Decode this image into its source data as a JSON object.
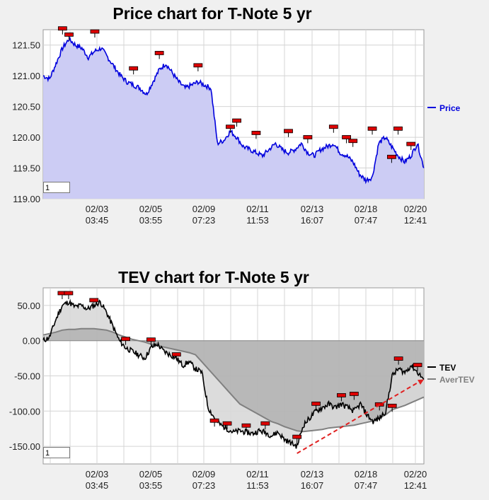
{
  "chart_data": [
    {
      "type": "area",
      "title": "Price chart for T-Note 5 yr",
      "ylim": [
        119.0,
        121.75
      ],
      "y_ticks": [
        "121.50",
        "121.00",
        "120.50",
        "120.00",
        "119.50",
        "119.00"
      ],
      "y_tick_values": [
        121.5,
        121.0,
        120.5,
        120.0,
        119.5,
        119.0
      ],
      "x_ticks": [
        {
          "date": "02/03",
          "time": "03:45"
        },
        {
          "date": "02/05",
          "time": "03:55"
        },
        {
          "date": "02/09",
          "time": "07:23"
        },
        {
          "date": "02/11",
          "time": "11:53"
        },
        {
          "date": "02/13",
          "time": "16:07"
        },
        {
          "date": "02/18",
          "time": "07:47"
        },
        {
          "date": "02/20",
          "time": "12:41"
        }
      ],
      "page_value": "1",
      "grid": true,
      "legend_position": "right",
      "colors": {
        "price_line": "#0000dd",
        "price_fill": "#ccccf4",
        "marker": "#dd0000"
      },
      "series": [
        {
          "name": "Price",
          "values": [
            121.0,
            120.95,
            121.2,
            121.45,
            121.6,
            121.5,
            121.45,
            121.3,
            121.4,
            121.45,
            121.3,
            121.15,
            121.0,
            120.9,
            120.85,
            120.8,
            120.7,
            120.9,
            121.1,
            121.2,
            121.05,
            120.9,
            120.8,
            120.85,
            120.9,
            120.85,
            120.8,
            119.9,
            119.95,
            120.1,
            120.0,
            119.85,
            119.8,
            119.75,
            119.7,
            119.8,
            119.9,
            119.8,
            119.75,
            119.8,
            119.9,
            119.75,
            119.7,
            119.8,
            119.85,
            119.9,
            119.75,
            119.7,
            119.6,
            119.4,
            119.3,
            119.35,
            119.9,
            120.0,
            119.85,
            119.7,
            119.6,
            119.7,
            119.9,
            119.5
          ]
        }
      ],
      "markers": [
        {
          "i": 3,
          "y": 121.65
        },
        {
          "i": 4,
          "y": 121.55
        },
        {
          "i": 8,
          "y": 121.6
        },
        {
          "i": 14,
          "y": 121.0
        },
        {
          "i": 18,
          "y": 121.25
        },
        {
          "i": 24,
          "y": 121.05
        },
        {
          "i": 29,
          "y": 120.05
        },
        {
          "i": 30,
          "y": 120.15
        },
        {
          "i": 33,
          "y": 119.95
        },
        {
          "i": 38,
          "y": 119.98
        },
        {
          "i": 41,
          "y": 119.88
        },
        {
          "i": 45,
          "y": 120.05
        },
        {
          "i": 47,
          "y": 119.88
        },
        {
          "i": 48,
          "y": 119.82
        },
        {
          "i": 51,
          "y": 120.02
        },
        {
          "i": 54,
          "y": 119.56
        },
        {
          "i": 55,
          "y": 120.02
        },
        {
          "i": 57,
          "y": 119.77
        }
      ]
    },
    {
      "type": "line",
      "title": "TEV chart for T-Note 5 yr",
      "ylim": [
        -175,
        75
      ],
      "y_ticks": [
        "50.00",
        "0.00",
        "-50.00",
        "-100.00",
        "-150.00"
      ],
      "y_tick_values": [
        50,
        0,
        -50,
        -100,
        -150
      ],
      "x_ticks": [
        {
          "date": "02/03",
          "time": "03:45"
        },
        {
          "date": "02/05",
          "time": "03:55"
        },
        {
          "date": "02/09",
          "time": "07:23"
        },
        {
          "date": "02/11",
          "time": "11:53"
        },
        {
          "date": "02/13",
          "time": "16:07"
        },
        {
          "date": "02/18",
          "time": "07:47"
        },
        {
          "date": "02/20",
          "time": "12:41"
        }
      ],
      "page_value": "1",
      "grid": true,
      "legend_position": "right",
      "colors": {
        "tev": "#000000",
        "avertev": "#808080",
        "fill_dark": "#b4b4b4",
        "fill_light": "#d8d8d8",
        "trend": "#e02020",
        "marker": "#dd0000"
      },
      "series": [
        {
          "name": "TEV",
          "values": [
            0,
            5,
            30,
            50,
            55,
            48,
            50,
            45,
            50,
            55,
            40,
            20,
            0,
            -10,
            -15,
            -20,
            -25,
            -10,
            -5,
            -15,
            -20,
            -25,
            -35,
            -30,
            -40,
            -45,
            -95,
            -110,
            -120,
            -125,
            -130,
            -128,
            -130,
            -132,
            -128,
            -130,
            -135,
            -130,
            -140,
            -145,
            -150,
            -120,
            -110,
            -100,
            -95,
            -90,
            -95,
            -90,
            -95,
            -100,
            -90,
            -105,
            -115,
            -110,
            -100,
            -50,
            -40,
            -45,
            -35,
            -45,
            -55
          ]
        },
        {
          "name": "AverTEV",
          "values": [
            8,
            10,
            12,
            15,
            16,
            16,
            17,
            17,
            17,
            16,
            15,
            12,
            8,
            5,
            2,
            0,
            -2,
            -5,
            -7,
            -9,
            -11,
            -13,
            -15,
            -17,
            -20,
            -30,
            -40,
            -50,
            -60,
            -70,
            -80,
            -90,
            -95,
            -100,
            -105,
            -110,
            -115,
            -118,
            -122,
            -125,
            -128,
            -129,
            -128,
            -127,
            -126,
            -124,
            -123,
            -122,
            -121,
            -120,
            -118,
            -116,
            -114,
            -110,
            -105,
            -98,
            -95,
            -92,
            -88,
            -84,
            -80
          ]
        }
      ],
      "trend_line": {
        "from": [
          40,
          -160
        ],
        "to": [
          60,
          -55
        ]
      },
      "markers": [
        {
          "i": 3,
          "y": 67
        },
        {
          "i": 4,
          "y": 67
        },
        {
          "i": 8,
          "y": 57
        },
        {
          "i": 13,
          "y": 2
        },
        {
          "i": 17,
          "y": 1
        },
        {
          "i": 21,
          "y": -20
        },
        {
          "i": 27,
          "y": -114
        },
        {
          "i": 29,
          "y": -118
        },
        {
          "i": 32,
          "y": -121
        },
        {
          "i": 35,
          "y": -118
        },
        {
          "i": 40,
          "y": -137
        },
        {
          "i": 43,
          "y": -90
        },
        {
          "i": 47,
          "y": -78
        },
        {
          "i": 49,
          "y": -76
        },
        {
          "i": 53,
          "y": -91
        },
        {
          "i": 55,
          "y": -93
        },
        {
          "i": 56,
          "y": -26
        },
        {
          "i": 59,
          "y": -35
        }
      ]
    }
  ]
}
